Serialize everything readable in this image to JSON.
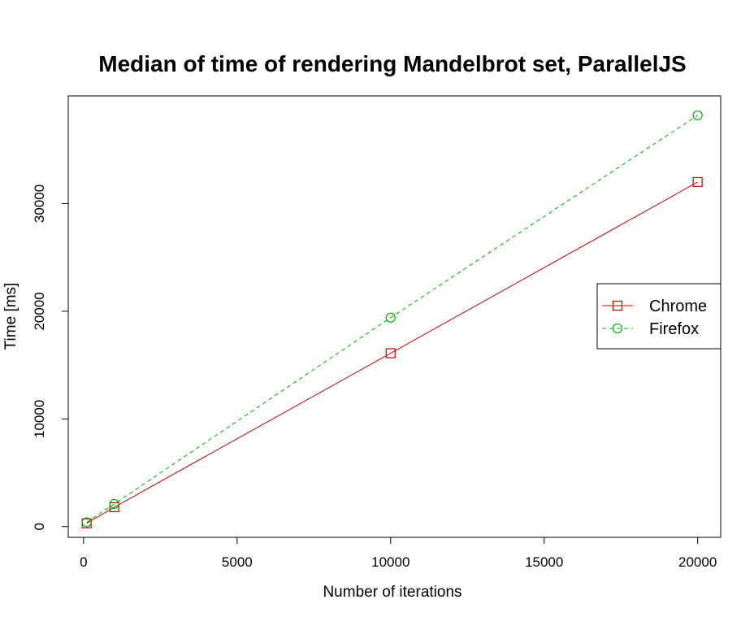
{
  "chart_data": {
    "type": "line",
    "title": "Median of time of rendering Mandelbrot set, ParallelJS",
    "xlabel": "Number of iterations",
    "ylabel": "Time  [ms]",
    "xlim": [
      -500,
      20750
    ],
    "ylim": [
      -1000,
      40000
    ],
    "xticks": [
      0,
      5000,
      10000,
      15000,
      20000
    ],
    "yticks": [
      0,
      10000,
      20000,
      30000
    ],
    "grid": false,
    "legend_position": "right",
    "series": [
      {
        "name": "Chrome",
        "color": "#cc0000",
        "line_style": "solid",
        "marker": "square",
        "x": [
          100,
          1000,
          10000,
          20000
        ],
        "y": [
          300,
          1800,
          16100,
          32000
        ]
      },
      {
        "name": "Firefox",
        "color": "#00b000",
        "line_style": "dashed",
        "marker": "circle",
        "x": [
          100,
          1000,
          10000,
          20000
        ],
        "y": [
          400,
          2100,
          19400,
          38200
        ]
      }
    ]
  }
}
